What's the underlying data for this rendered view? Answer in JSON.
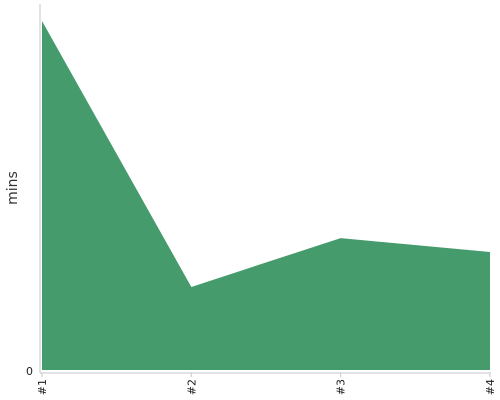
{
  "chart_data": {
    "type": "area",
    "categories": [
      "#1",
      "#2",
      "#3",
      "#4"
    ],
    "series": [
      {
        "values": [
          100,
          23.8,
          37.8,
          33.8
        ]
      }
    ],
    "ylabel": "mins",
    "xlabel": "",
    "ylim": [
      0,
      100
    ],
    "y_tick_labels": [
      "0"
    ],
    "grid": false,
    "legend": "none",
    "color": "#459b6c"
  }
}
